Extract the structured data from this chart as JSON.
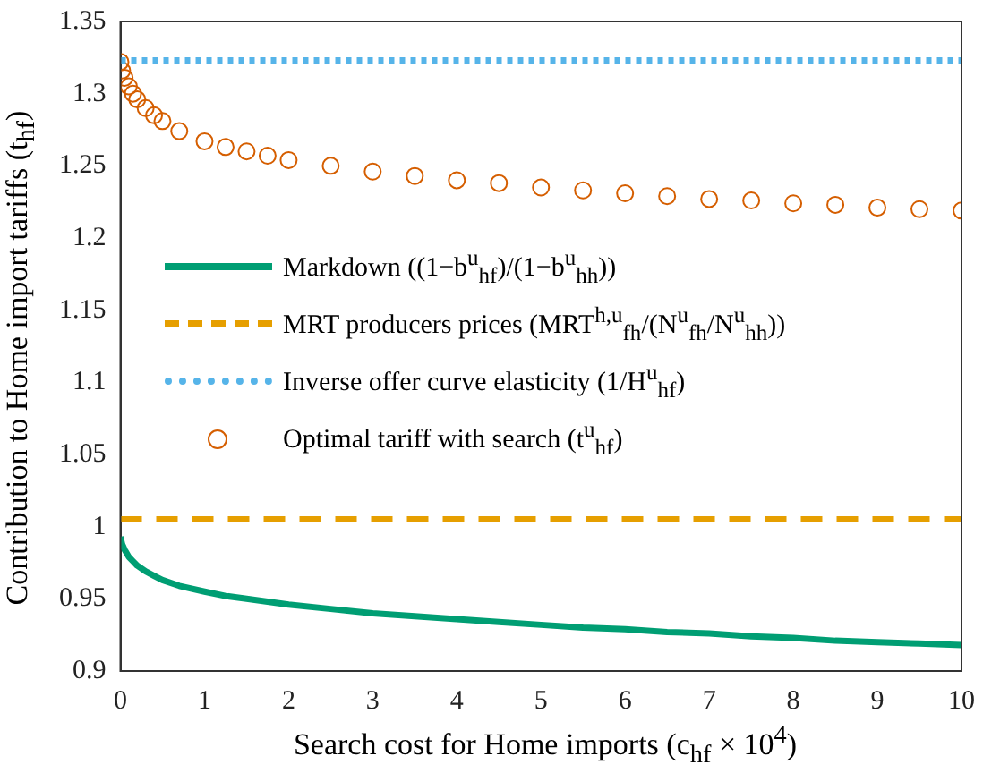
{
  "chart_data": {
    "type": "line",
    "xlabel": "Search cost for Home imports (c$_{hf}$ × 10$^{4}$)",
    "ylabel": "Contribution to Home import tariffs (t$_{hf}$)",
    "x": [
      0,
      0.02,
      0.05,
      0.1,
      0.15,
      0.2,
      0.3,
      0.4,
      0.5,
      0.7,
      1,
      1.25,
      1.5,
      1.75,
      2,
      2.5,
      3,
      3.5,
      4,
      4.5,
      5,
      5.5,
      6,
      6.5,
      7,
      7.5,
      8,
      8.5,
      9,
      9.5,
      10
    ],
    "xlim": [
      0,
      10
    ],
    "xticks": [
      0,
      1,
      2,
      3,
      4,
      5,
      6,
      7,
      8,
      9,
      10
    ],
    "ylim": [
      0.9,
      1.35
    ],
    "yticks": [
      0.9,
      0.95,
      1,
      1.05,
      1.1,
      1.15,
      1.2,
      1.25,
      1.3,
      1.35
    ],
    "grid": false,
    "legend": "left",
    "series": [
      {
        "name": "Markdown ((1−b$^{u}$$_{hf}$)/(1−b$^{u}$$_{hh}$))",
        "color": "#009e73",
        "line_style": "solid",
        "values": [
          0.993,
          0.988,
          0.984,
          0.979,
          0.976,
          0.973,
          0.969,
          0.966,
          0.963,
          0.959,
          0.955,
          0.952,
          0.95,
          0.948,
          0.946,
          0.943,
          0.94,
          0.938,
          0.936,
          0.934,
          0.932,
          0.93,
          0.929,
          0.927,
          0.926,
          0.924,
          0.923,
          0.921,
          0.92,
          0.919,
          0.918
        ]
      },
      {
        "name": "MRT producers prices (MRT$^{h,u}$$_{fh}$/(N$^{u}$$_{fh}$/N$^{u}$$_{hh}$))",
        "color": "#e69f00",
        "line_style": "dashed",
        "values": [
          1.005,
          1.005,
          1.005,
          1.005,
          1.005,
          1.005,
          1.005,
          1.005,
          1.005,
          1.005,
          1.005,
          1.005,
          1.005,
          1.005,
          1.005,
          1.005,
          1.005,
          1.005,
          1.005,
          1.005,
          1.005,
          1.005,
          1.005,
          1.005,
          1.005,
          1.005,
          1.005,
          1.005,
          1.005,
          1.005,
          1.005
        ]
      },
      {
        "name": "Inverse offer curve elasticity (1/H$^{u}$$_{hf}$)",
        "color": "#56b4e9",
        "line_style": "dotted",
        "values": [
          1.323,
          1.323,
          1.323,
          1.323,
          1.323,
          1.323,
          1.323,
          1.323,
          1.323,
          1.323,
          1.323,
          1.323,
          1.323,
          1.323,
          1.323,
          1.323,
          1.323,
          1.323,
          1.323,
          1.323,
          1.323,
          1.323,
          1.323,
          1.323,
          1.323,
          1.323,
          1.323,
          1.323,
          1.323,
          1.323,
          1.323
        ]
      },
      {
        "name": "Optimal tariff with search (t$^{u}$$_{hf}$)",
        "color": "#d55e00",
        "type": "scatter",
        "marker": "circle",
        "values": [
          1.322,
          1.316,
          1.311,
          1.305,
          1.3,
          1.296,
          1.29,
          1.285,
          1.281,
          1.274,
          1.267,
          1.263,
          1.26,
          1.257,
          1.254,
          1.25,
          1.246,
          1.243,
          1.24,
          1.238,
          1.235,
          1.233,
          1.231,
          1.229,
          1.227,
          1.226,
          1.224,
          1.223,
          1.221,
          1.22,
          1.219
        ]
      }
    ]
  }
}
